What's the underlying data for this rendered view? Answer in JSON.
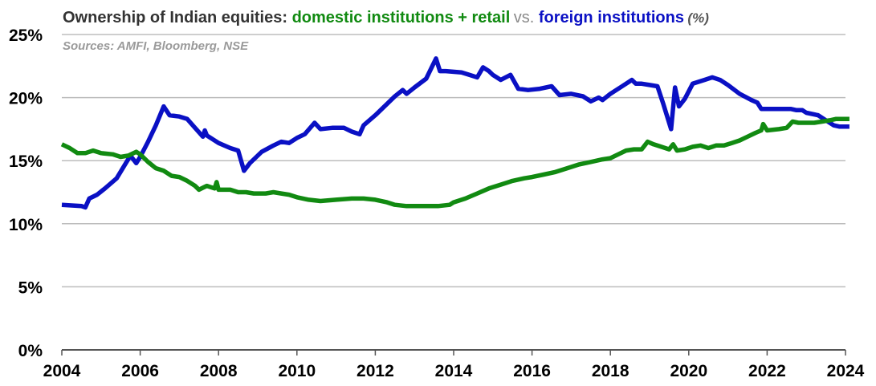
{
  "chart_data": {
    "type": "line",
    "title": {
      "prefix": "Ownership of Indian equities: ",
      "domestic": "domestic institutions + retail",
      "vs": " vs. ",
      "foreign": "foreign institutions",
      "unit": " (%)"
    },
    "subtitle": "Sources: AMFI, Bloomberg, NSE",
    "xlabel": "",
    "ylabel": "",
    "xlim": [
      2004,
      2024
    ],
    "ylim": [
      0,
      25
    ],
    "x_ticks": [
      "2004",
      "2006",
      "2008",
      "2010",
      "2012",
      "2014",
      "2016",
      "2018",
      "2020",
      "2022",
      "2024"
    ],
    "y_ticks": [
      "0%",
      "5%",
      "10%",
      "15%",
      "20%",
      "25%"
    ],
    "grid": "horizontal",
    "colors": {
      "domestic": "#118a11",
      "foreign": "#0a10c4",
      "vs": "#8a8a8a",
      "prefix": "#333333",
      "unit": "#555555"
    },
    "series": [
      {
        "key": "foreign",
        "color": "#0a10c4",
        "points": [
          [
            2004.0,
            11.5
          ],
          [
            2004.5,
            11.4
          ],
          [
            2004.6,
            11.3
          ],
          [
            2004.7,
            12.0
          ],
          [
            2004.9,
            12.3
          ],
          [
            2005.1,
            12.8
          ],
          [
            2005.4,
            13.6
          ],
          [
            2005.75,
            15.4
          ],
          [
            2005.9,
            14.8
          ],
          [
            2006.0,
            15.3
          ],
          [
            2006.2,
            16.5
          ],
          [
            2006.4,
            17.8
          ],
          [
            2006.6,
            19.3
          ],
          [
            2006.75,
            18.6
          ],
          [
            2007.0,
            18.5
          ],
          [
            2007.2,
            18.3
          ],
          [
            2007.4,
            17.6
          ],
          [
            2007.6,
            16.9
          ],
          [
            2007.65,
            17.4
          ],
          [
            2007.7,
            17.0
          ],
          [
            2008.0,
            16.4
          ],
          [
            2008.3,
            16.0
          ],
          [
            2008.5,
            15.8
          ],
          [
            2008.65,
            14.2
          ],
          [
            2008.8,
            14.8
          ],
          [
            2009.1,
            15.7
          ],
          [
            2009.4,
            16.2
          ],
          [
            2009.6,
            16.5
          ],
          [
            2009.8,
            16.4
          ],
          [
            2010.0,
            16.8
          ],
          [
            2010.2,
            17.1
          ],
          [
            2010.45,
            18.0
          ],
          [
            2010.6,
            17.5
          ],
          [
            2010.9,
            17.6
          ],
          [
            2011.2,
            17.6
          ],
          [
            2011.4,
            17.3
          ],
          [
            2011.6,
            17.1
          ],
          [
            2011.7,
            17.8
          ],
          [
            2012.0,
            18.6
          ],
          [
            2012.3,
            19.5
          ],
          [
            2012.5,
            20.1
          ],
          [
            2012.7,
            20.6
          ],
          [
            2012.8,
            20.3
          ],
          [
            2013.0,
            20.8
          ],
          [
            2013.3,
            21.5
          ],
          [
            2013.55,
            23.1
          ],
          [
            2013.65,
            22.1
          ],
          [
            2013.8,
            22.1
          ],
          [
            2014.2,
            22.0
          ],
          [
            2014.4,
            21.8
          ],
          [
            2014.6,
            21.6
          ],
          [
            2014.75,
            22.4
          ],
          [
            2014.9,
            22.1
          ],
          [
            2015.0,
            21.8
          ],
          [
            2015.2,
            21.4
          ],
          [
            2015.45,
            21.8
          ],
          [
            2015.65,
            20.7
          ],
          [
            2015.9,
            20.6
          ],
          [
            2016.2,
            20.7
          ],
          [
            2016.5,
            20.9
          ],
          [
            2016.7,
            20.2
          ],
          [
            2017.0,
            20.3
          ],
          [
            2017.3,
            20.1
          ],
          [
            2017.5,
            19.7
          ],
          [
            2017.7,
            20.0
          ],
          [
            2017.8,
            19.8
          ],
          [
            2018.0,
            20.3
          ],
          [
            2018.3,
            20.9
          ],
          [
            2018.55,
            21.4
          ],
          [
            2018.65,
            21.1
          ],
          [
            2018.8,
            21.1
          ],
          [
            2019.0,
            21.0
          ],
          [
            2019.2,
            20.9
          ],
          [
            2019.35,
            19.5
          ],
          [
            2019.55,
            17.5
          ],
          [
            2019.65,
            20.8
          ],
          [
            2019.75,
            19.3
          ],
          [
            2019.9,
            19.9
          ],
          [
            2020.1,
            21.1
          ],
          [
            2020.4,
            21.4
          ],
          [
            2020.6,
            21.6
          ],
          [
            2020.8,
            21.4
          ],
          [
            2021.0,
            21.0
          ],
          [
            2021.3,
            20.3
          ],
          [
            2021.6,
            19.8
          ],
          [
            2021.75,
            19.6
          ],
          [
            2021.85,
            19.1
          ],
          [
            2022.2,
            19.1
          ],
          [
            2022.6,
            19.1
          ],
          [
            2022.75,
            19.0
          ],
          [
            2022.9,
            19.0
          ],
          [
            2023.0,
            18.8
          ],
          [
            2023.3,
            18.6
          ],
          [
            2023.5,
            18.2
          ],
          [
            2023.7,
            17.8
          ],
          [
            2023.85,
            17.7
          ],
          [
            2024.0,
            17.7
          ],
          [
            2024.1,
            17.7
          ]
        ]
      },
      {
        "key": "domestic",
        "color": "#118a11",
        "points": [
          [
            2004.0,
            16.3
          ],
          [
            2004.2,
            16.0
          ],
          [
            2004.4,
            15.6
          ],
          [
            2004.6,
            15.6
          ],
          [
            2004.8,
            15.8
          ],
          [
            2005.0,
            15.6
          ],
          [
            2005.3,
            15.5
          ],
          [
            2005.5,
            15.3
          ],
          [
            2005.7,
            15.4
          ],
          [
            2005.9,
            15.7
          ],
          [
            2006.0,
            15.5
          ],
          [
            2006.2,
            14.9
          ],
          [
            2006.4,
            14.4
          ],
          [
            2006.6,
            14.2
          ],
          [
            2006.8,
            13.8
          ],
          [
            2007.0,
            13.7
          ],
          [
            2007.2,
            13.4
          ],
          [
            2007.4,
            13.0
          ],
          [
            2007.5,
            12.7
          ],
          [
            2007.7,
            13.0
          ],
          [
            2007.9,
            12.8
          ],
          [
            2007.95,
            13.3
          ],
          [
            2008.0,
            12.7
          ],
          [
            2008.3,
            12.7
          ],
          [
            2008.5,
            12.5
          ],
          [
            2008.7,
            12.5
          ],
          [
            2008.9,
            12.4
          ],
          [
            2009.2,
            12.4
          ],
          [
            2009.4,
            12.5
          ],
          [
            2009.6,
            12.4
          ],
          [
            2009.8,
            12.3
          ],
          [
            2010.0,
            12.1
          ],
          [
            2010.3,
            11.9
          ],
          [
            2010.6,
            11.8
          ],
          [
            2011.0,
            11.9
          ],
          [
            2011.4,
            12.0
          ],
          [
            2011.7,
            12.0
          ],
          [
            2012.0,
            11.9
          ],
          [
            2012.3,
            11.7
          ],
          [
            2012.5,
            11.5
          ],
          [
            2012.8,
            11.4
          ],
          [
            2013.0,
            11.4
          ],
          [
            2013.3,
            11.4
          ],
          [
            2013.6,
            11.4
          ],
          [
            2013.9,
            11.5
          ],
          [
            2014.0,
            11.7
          ],
          [
            2014.3,
            12.0
          ],
          [
            2014.6,
            12.4
          ],
          [
            2014.9,
            12.8
          ],
          [
            2015.2,
            13.1
          ],
          [
            2015.5,
            13.4
          ],
          [
            2015.8,
            13.6
          ],
          [
            2016.0,
            13.7
          ],
          [
            2016.3,
            13.9
          ],
          [
            2016.6,
            14.1
          ],
          [
            2016.9,
            14.4
          ],
          [
            2017.2,
            14.7
          ],
          [
            2017.5,
            14.9
          ],
          [
            2017.8,
            15.1
          ],
          [
            2018.0,
            15.2
          ],
          [
            2018.2,
            15.5
          ],
          [
            2018.4,
            15.8
          ],
          [
            2018.6,
            15.9
          ],
          [
            2018.8,
            15.9
          ],
          [
            2018.95,
            16.5
          ],
          [
            2019.1,
            16.3
          ],
          [
            2019.3,
            16.1
          ],
          [
            2019.5,
            15.9
          ],
          [
            2019.6,
            16.3
          ],
          [
            2019.7,
            15.8
          ],
          [
            2019.9,
            15.9
          ],
          [
            2020.1,
            16.1
          ],
          [
            2020.3,
            16.2
          ],
          [
            2020.5,
            16.0
          ],
          [
            2020.7,
            16.2
          ],
          [
            2020.9,
            16.2
          ],
          [
            2021.1,
            16.4
          ],
          [
            2021.3,
            16.6
          ],
          [
            2021.5,
            16.9
          ],
          [
            2021.7,
            17.2
          ],
          [
            2021.85,
            17.4
          ],
          [
            2021.9,
            17.9
          ],
          [
            2022.0,
            17.4
          ],
          [
            2022.3,
            17.5
          ],
          [
            2022.5,
            17.6
          ],
          [
            2022.65,
            18.1
          ],
          [
            2022.8,
            18.0
          ],
          [
            2023.0,
            18.0
          ],
          [
            2023.2,
            18.0
          ],
          [
            2023.4,
            18.1
          ],
          [
            2023.6,
            18.2
          ],
          [
            2023.75,
            18.3
          ],
          [
            2024.0,
            18.3
          ],
          [
            2024.1,
            18.3
          ]
        ]
      }
    ]
  }
}
